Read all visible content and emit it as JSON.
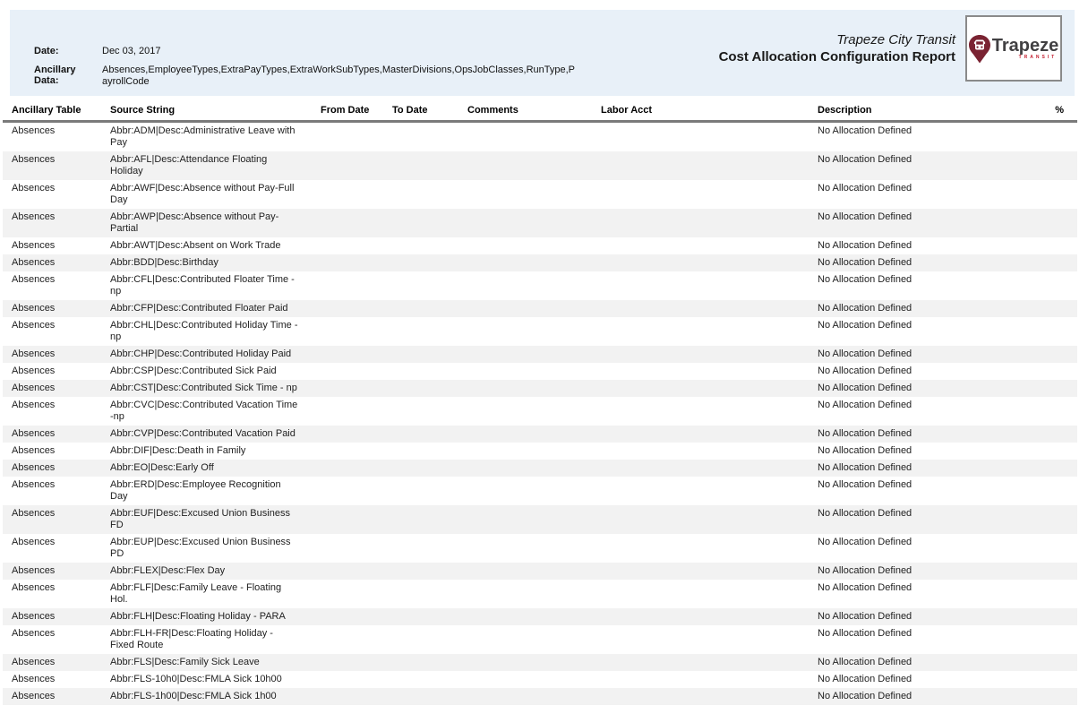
{
  "header": {
    "date_label": "Date:",
    "date_value": "Dec 03, 2017",
    "ancillary_label": "Ancillary Data:",
    "ancillary_value": "Absences,EmployeeTypes,ExtraPayTypes,ExtraWorkSubTypes,MasterDivisions,OpsJobClasses,RunType,PayrollCode",
    "agency": "Trapeze City Transit",
    "title": "Cost Allocation Configuration Report",
    "logo_brand": "Trapeze",
    "logo_sub": "TRANSIT"
  },
  "colors": {
    "band_background": "#e8f0f8",
    "row_stripe": "#f2f2f2",
    "header_rule": "#7a7a7a",
    "logo_maroon": "#7a2332",
    "logo_red": "#c42031",
    "logo_charcoal": "#414042"
  },
  "table": {
    "columns": [
      "Ancillary Table",
      "Source String",
      "From Date",
      "To Date",
      "Comments",
      "Labor Acct",
      "Description",
      "%"
    ],
    "rows": [
      {
        "ancillary_table": "Absences",
        "source_string": "Abbr:ADM|Desc:Administrative Leave with Pay",
        "from_date": "",
        "to_date": "",
        "comments": "",
        "labor_acct": "",
        "description": "No Allocation Defined",
        "percent": ""
      },
      {
        "ancillary_table": "Absences",
        "source_string": "Abbr:AFL|Desc:Attendance Floating Holiday",
        "from_date": "",
        "to_date": "",
        "comments": "",
        "labor_acct": "",
        "description": "No Allocation Defined",
        "percent": ""
      },
      {
        "ancillary_table": "Absences",
        "source_string": "Abbr:AWF|Desc:Absence without Pay-Full Day",
        "from_date": "",
        "to_date": "",
        "comments": "",
        "labor_acct": "",
        "description": "No Allocation Defined",
        "percent": ""
      },
      {
        "ancillary_table": "Absences",
        "source_string": "Abbr:AWP|Desc:Absence without Pay-Partial",
        "from_date": "",
        "to_date": "",
        "comments": "",
        "labor_acct": "",
        "description": "No Allocation Defined",
        "percent": ""
      },
      {
        "ancillary_table": "Absences",
        "source_string": "Abbr:AWT|Desc:Absent on Work Trade",
        "from_date": "",
        "to_date": "",
        "comments": "",
        "labor_acct": "",
        "description": "No Allocation Defined",
        "percent": ""
      },
      {
        "ancillary_table": "Absences",
        "source_string": "Abbr:BDD|Desc:Birthday",
        "from_date": "",
        "to_date": "",
        "comments": "",
        "labor_acct": "",
        "description": "No Allocation Defined",
        "percent": ""
      },
      {
        "ancillary_table": "Absences",
        "source_string": "Abbr:CFL|Desc:Contributed Floater Time - np",
        "from_date": "",
        "to_date": "",
        "comments": "",
        "labor_acct": "",
        "description": "No Allocation Defined",
        "percent": ""
      },
      {
        "ancillary_table": "Absences",
        "source_string": "Abbr:CFP|Desc:Contributed Floater Paid",
        "from_date": "",
        "to_date": "",
        "comments": "",
        "labor_acct": "",
        "description": "No Allocation Defined",
        "percent": ""
      },
      {
        "ancillary_table": "Absences",
        "source_string": "Abbr:CHL|Desc:Contributed Holiday Time - np",
        "from_date": "",
        "to_date": "",
        "comments": "",
        "labor_acct": "",
        "description": "No Allocation Defined",
        "percent": ""
      },
      {
        "ancillary_table": "Absences",
        "source_string": "Abbr:CHP|Desc:Contributed Holiday Paid",
        "from_date": "",
        "to_date": "",
        "comments": "",
        "labor_acct": "",
        "description": "No Allocation Defined",
        "percent": ""
      },
      {
        "ancillary_table": "Absences",
        "source_string": "Abbr:CSP|Desc:Contributed Sick Paid",
        "from_date": "",
        "to_date": "",
        "comments": "",
        "labor_acct": "",
        "description": "No Allocation Defined",
        "percent": ""
      },
      {
        "ancillary_table": "Absences",
        "source_string": "Abbr:CST|Desc:Contributed Sick Time - np",
        "from_date": "",
        "to_date": "",
        "comments": "",
        "labor_acct": "",
        "description": "No Allocation Defined",
        "percent": ""
      },
      {
        "ancillary_table": "Absences",
        "source_string": "Abbr:CVC|Desc:Contributed Vacation Time -np",
        "from_date": "",
        "to_date": "",
        "comments": "",
        "labor_acct": "",
        "description": "No Allocation Defined",
        "percent": ""
      },
      {
        "ancillary_table": "Absences",
        "source_string": "Abbr:CVP|Desc:Contributed Vacation Paid",
        "from_date": "",
        "to_date": "",
        "comments": "",
        "labor_acct": "",
        "description": "No Allocation Defined",
        "percent": ""
      },
      {
        "ancillary_table": "Absences",
        "source_string": "Abbr:DIF|Desc:Death in Family",
        "from_date": "",
        "to_date": "",
        "comments": "",
        "labor_acct": "",
        "description": "No Allocation Defined",
        "percent": ""
      },
      {
        "ancillary_table": "Absences",
        "source_string": "Abbr:EO|Desc:Early Off",
        "from_date": "",
        "to_date": "",
        "comments": "",
        "labor_acct": "",
        "description": "No Allocation Defined",
        "percent": ""
      },
      {
        "ancillary_table": "Absences",
        "source_string": "Abbr:ERD|Desc:Employee Recognition Day",
        "from_date": "",
        "to_date": "",
        "comments": "",
        "labor_acct": "",
        "description": "No Allocation Defined",
        "percent": ""
      },
      {
        "ancillary_table": "Absences",
        "source_string": "Abbr:EUF|Desc:Excused Union Business FD",
        "from_date": "",
        "to_date": "",
        "comments": "",
        "labor_acct": "",
        "description": "No Allocation Defined",
        "percent": ""
      },
      {
        "ancillary_table": "Absences",
        "source_string": "Abbr:EUP|Desc:Excused Union Business PD",
        "from_date": "",
        "to_date": "",
        "comments": "",
        "labor_acct": "",
        "description": "No Allocation Defined",
        "percent": ""
      },
      {
        "ancillary_table": "Absences",
        "source_string": "Abbr:FLEX|Desc:Flex Day",
        "from_date": "",
        "to_date": "",
        "comments": "",
        "labor_acct": "",
        "description": "No Allocation Defined",
        "percent": ""
      },
      {
        "ancillary_table": "Absences",
        "source_string": "Abbr:FLF|Desc:Family Leave - Floating Hol.",
        "from_date": "",
        "to_date": "",
        "comments": "",
        "labor_acct": "",
        "description": "No Allocation Defined",
        "percent": ""
      },
      {
        "ancillary_table": "Absences",
        "source_string": "Abbr:FLH|Desc:Floating Holiday - PARA",
        "from_date": "",
        "to_date": "",
        "comments": "",
        "labor_acct": "",
        "description": "No Allocation Defined",
        "percent": ""
      },
      {
        "ancillary_table": "Absences",
        "source_string": "Abbr:FLH-FR|Desc:Floating Holiday - Fixed Route",
        "from_date": "",
        "to_date": "",
        "comments": "",
        "labor_acct": "",
        "description": "No Allocation Defined",
        "percent": ""
      },
      {
        "ancillary_table": "Absences",
        "source_string": "Abbr:FLS|Desc:Family Sick Leave",
        "from_date": "",
        "to_date": "",
        "comments": "",
        "labor_acct": "",
        "description": "No Allocation Defined",
        "percent": ""
      },
      {
        "ancillary_table": "Absences",
        "source_string": "Abbr:FLS-10h0|Desc:FMLA Sick 10h00",
        "from_date": "",
        "to_date": "",
        "comments": "",
        "labor_acct": "",
        "description": "No Allocation Defined",
        "percent": ""
      },
      {
        "ancillary_table": "Absences",
        "source_string": "Abbr:FLS-1h00|Desc:FMLA Sick 1h00",
        "from_date": "",
        "to_date": "",
        "comments": "",
        "labor_acct": "",
        "description": "No Allocation Defined",
        "percent": ""
      }
    ]
  }
}
